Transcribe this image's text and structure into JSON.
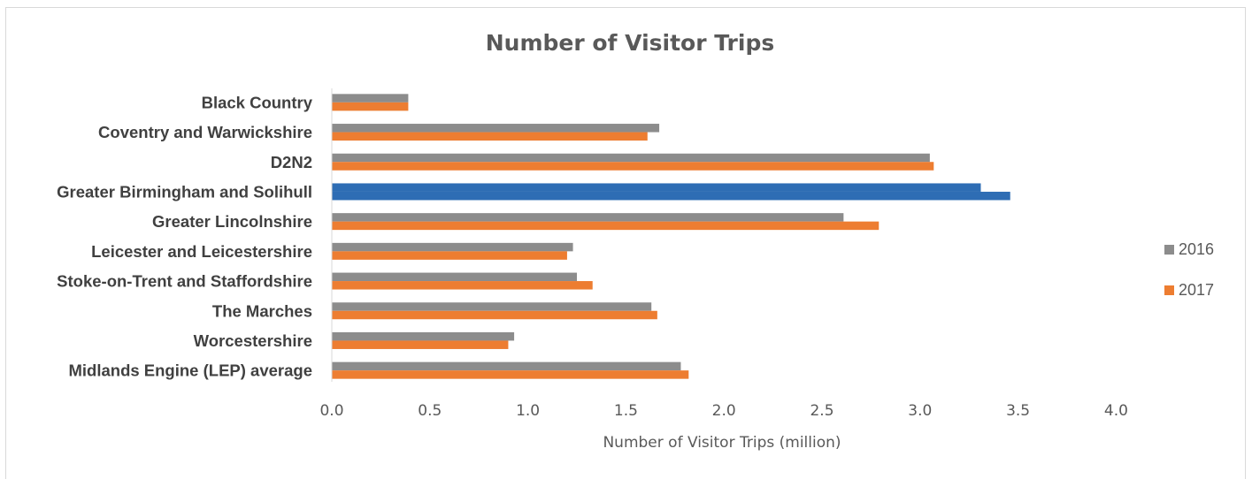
{
  "chart_data": {
    "type": "bar",
    "orientation": "horizontal",
    "title": "Number of Visitor Trips",
    "xlabel": "Number of Visitor Trips (million)",
    "ylabel": "",
    "xlim": [
      0,
      4
    ],
    "ticks": [
      "0.0",
      "0.5",
      "1.0",
      "1.5",
      "2.0",
      "2.5",
      "3.0",
      "3.5",
      "4.0"
    ],
    "grid": false,
    "legend_position": "right",
    "categories": [
      "Black Country",
      "Coventry and Warwickshire",
      "D2N2",
      "Greater Birmingham and Solihull",
      "Greater Lincolnshire",
      "Leicester and Leicestershire",
      "Stoke-on-Trent and Staffordshire",
      "The Marches",
      "Worcestershire",
      "Midlands Engine (LEP) average"
    ],
    "series": [
      {
        "name": "2016",
        "color": "#8c8c8c",
        "values": [
          0.39,
          1.67,
          3.05,
          3.31,
          2.61,
          1.23,
          1.25,
          1.63,
          0.93,
          1.78
        ]
      },
      {
        "name": "2017",
        "color": "#ed7d31",
        "values": [
          0.39,
          1.61,
          3.07,
          3.46,
          2.79,
          1.2,
          1.33,
          1.66,
          0.9,
          1.82
        ]
      }
    ],
    "highlight": {
      "category": "Greater Birmingham and Solihull",
      "color": "#2e6db4"
    }
  }
}
